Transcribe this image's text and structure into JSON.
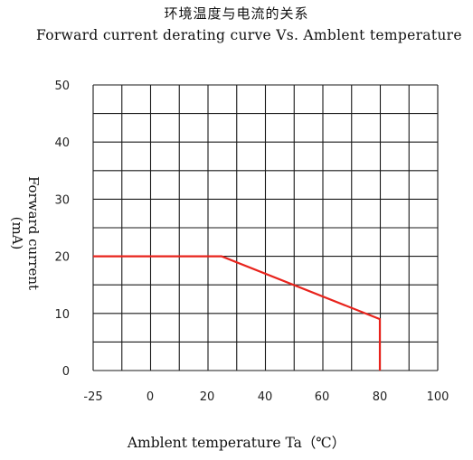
{
  "chart_data": {
    "type": "line",
    "title_cn": "环境温度与电流的关系",
    "title": "Forward current derating curve Vs. Amblent temperature",
    "xlabel": "Amblent temperature Ta（℃）",
    "ylabel": "Forward current (mA)",
    "xlim": [
      -25,
      100
    ],
    "ylim": [
      0,
      50
    ],
    "x_ticks": [
      "-25",
      "0",
      "20",
      "40",
      "60",
      "80",
      "100"
    ],
    "y_ticks": [
      "50",
      "40",
      "30",
      "20",
      "10",
      "0"
    ],
    "grid": true,
    "series": [
      {
        "color": "#e8231c",
        "x": [
          -25,
          25,
          80,
          80
        ],
        "y": [
          20,
          20,
          9,
          0
        ]
      }
    ]
  }
}
